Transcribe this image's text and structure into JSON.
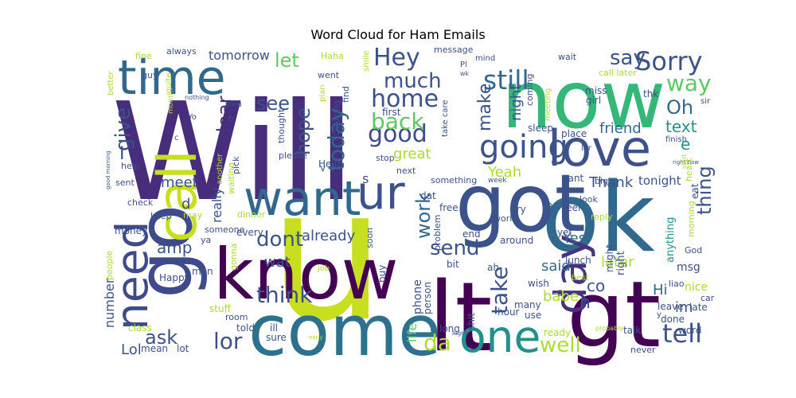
{
  "title": "Word Cloud for Ham Emails",
  "palette": {
    "dark_purple": "#440154",
    "indigo": "#472d7b",
    "blue": "#3b528b",
    "steel": "#2c728e",
    "teal": "#21918c",
    "green": "#28ae80",
    "light_green": "#5ec962",
    "lime": "#addc30",
    "yellow": "#fde725"
  },
  "words": [
    {
      "text": "Will",
      "color": "#472d7b"
    },
    {
      "text": "u",
      "color": "#c8df1f"
    },
    {
      "text": "now",
      "color": "#35b779"
    },
    {
      "text": "ok",
      "color": "#31688e"
    },
    {
      "text": "got",
      "color": "#3b528b"
    },
    {
      "text": "gt",
      "color": "#440154"
    },
    {
      "text": "lt",
      "color": "#440154"
    },
    {
      "text": "come",
      "color": "#2c728e"
    },
    {
      "text": "know",
      "color": "#440154"
    },
    {
      "text": "go",
      "color": "#3e4a89"
    },
    {
      "text": "love",
      "color": "#3b528b"
    },
    {
      "text": "time",
      "color": "#31688e"
    },
    {
      "text": "call",
      "color": "#c8df1f"
    },
    {
      "text": "want",
      "color": "#31688e"
    },
    {
      "text": "ur",
      "color": "#3b528b"
    },
    {
      "text": "one",
      "color": "#21918c"
    },
    {
      "text": "need",
      "color": "#3e4a89"
    },
    {
      "text": "day",
      "color": "#46327e"
    },
    {
      "text": "going",
      "color": "#3b528b"
    },
    {
      "text": "Sorry",
      "color": "#3b528b"
    },
    {
      "text": "still",
      "color": "#31688e"
    },
    {
      "text": "Hey",
      "color": "#3b528b"
    },
    {
      "text": "good",
      "color": "#3e4a89"
    },
    {
      "text": "home",
      "color": "#3b528b"
    },
    {
      "text": "much",
      "color": "#3b528b"
    },
    {
      "text": "back",
      "color": "#5ec962"
    },
    {
      "text": "today",
      "color": "#31688e"
    },
    {
      "text": "think",
      "color": "#3b528b"
    },
    {
      "text": "dont",
      "color": "#3b528b"
    },
    {
      "text": "tell",
      "color": "#3b528b"
    },
    {
      "text": "well",
      "color": "#addc30"
    },
    {
      "text": "da",
      "color": "#addc30"
    },
    {
      "text": "lor",
      "color": "#3b528b"
    },
    {
      "text": "ask",
      "color": "#3b528b"
    },
    {
      "text": "send",
      "color": "#3b528b"
    },
    {
      "text": "take",
      "color": "#3b528b"
    },
    {
      "text": "work",
      "color": "#31688e"
    },
    {
      "text": "way",
      "color": "#5ec962"
    },
    {
      "text": "say",
      "color": "#3b528b"
    },
    {
      "text": "see",
      "color": "#3b528b"
    },
    {
      "text": "let",
      "color": "#5ec962"
    },
    {
      "text": "give",
      "color": "#3b528b"
    },
    {
      "text": "dear",
      "color": "#46327e"
    },
    {
      "text": "hope",
      "color": "#3b528b"
    },
    {
      "text": "make",
      "color": "#3b528b"
    },
    {
      "text": "Oh",
      "color": "#31688e"
    },
    {
      "text": "text",
      "color": "#21918c"
    },
    {
      "text": "thing",
      "color": "#3b528b"
    },
    {
      "text": "friend",
      "color": "#31688e"
    },
    {
      "text": "night",
      "color": "#3b528b"
    },
    {
      "text": "great",
      "color": "#addc30"
    },
    {
      "text": "Yeah",
      "color": "#addc30"
    },
    {
      "text": "Thank",
      "color": "#3b528b"
    },
    {
      "text": "meet",
      "color": "#3b528b"
    },
    {
      "text": "really",
      "color": "#3b528b"
    },
    {
      "text": "wat",
      "color": "#3b528b"
    },
    {
      "text": "amp",
      "color": "#3b528b"
    },
    {
      "text": "already",
      "color": "#3b528b"
    },
    {
      "text": "said",
      "color": "#31688e"
    },
    {
      "text": "Yes",
      "color": "#31688e"
    },
    {
      "text": "later",
      "color": "#addc30"
    },
    {
      "text": "Hi",
      "color": "#31688e"
    },
    {
      "text": "n",
      "color": "#3b528b"
    },
    {
      "text": "co",
      "color": "#3b528b"
    },
    {
      "text": "babe",
      "color": "#addc30"
    },
    {
      "text": "im",
      "color": "#3b528b"
    },
    {
      "text": "Lol",
      "color": "#3b528b"
    },
    {
      "text": "life",
      "color": "#5ec962"
    },
    {
      "text": "number",
      "color": "#3b528b"
    },
    {
      "text": "tomorrow",
      "color": "#3b528b"
    },
    {
      "text": "tonight",
      "color": "#3b528b"
    },
    {
      "text": "e",
      "color": "#21918c"
    },
    {
      "text": "d",
      "color": "#3b528b"
    },
    {
      "text": "I",
      "color": "#3b528b"
    },
    {
      "text": "s",
      "color": "#3b528b"
    },
    {
      "text": "phone",
      "color": "#3b528b"
    },
    {
      "text": "msg",
      "color": "#3b528b"
    },
    {
      "text": "nice",
      "color": "#addc30"
    },
    {
      "text": "late",
      "color": "#3b528b"
    },
    {
      "text": "leave",
      "color": "#3b528b"
    },
    {
      "text": "done",
      "color": "#3b528b"
    },
    {
      "text": "talk",
      "color": "#3b528b"
    },
    {
      "text": "word",
      "color": "#3b528b"
    },
    {
      "text": "anything",
      "color": "#21918c"
    },
    {
      "text": "right",
      "color": "#3b528b"
    },
    {
      "text": "might",
      "color": "#3b528b"
    },
    {
      "text": "lunch",
      "color": "#3b528b"
    },
    {
      "text": "yet",
      "color": "#3b528b"
    },
    {
      "text": "around",
      "color": "#3b528b"
    },
    {
      "text": "end",
      "color": "#3b528b"
    },
    {
      "text": "wish",
      "color": "#3b528b"
    },
    {
      "text": "ah",
      "color": "#3b528b"
    },
    {
      "text": "bit",
      "color": "#3b528b"
    },
    {
      "text": "person",
      "color": "#3b528b"
    },
    {
      "text": "buy",
      "color": "#3b528b"
    },
    {
      "text": "hour",
      "color": "#3b528b"
    },
    {
      "text": "many",
      "color": "#3b528b"
    },
    {
      "text": "ready",
      "color": "#addc30"
    },
    {
      "text": "long",
      "color": "#3b528b"
    },
    {
      "text": "shit",
      "color": "#3b528b"
    },
    {
      "text": "use",
      "color": "#3b528b"
    },
    {
      "text": "sure",
      "color": "#3b528b"
    },
    {
      "text": "ill",
      "color": "#3b528b"
    },
    {
      "text": "told",
      "color": "#3b528b"
    },
    {
      "text": "room",
      "color": "#3b528b"
    },
    {
      "text": "stuff",
      "color": "#addc30"
    },
    {
      "text": "class",
      "color": "#addc30"
    },
    {
      "text": "mean",
      "color": "#3b528b"
    },
    {
      "text": "lot",
      "color": "#3b528b"
    },
    {
      "text": "Happy",
      "color": "#3b528b"
    },
    {
      "text": "man",
      "color": "#3b528b"
    },
    {
      "text": "people",
      "color": "#addc30"
    },
    {
      "text": "money",
      "color": "#3b528b"
    },
    {
      "text": "gonna",
      "color": "#addc30"
    },
    {
      "text": "someone",
      "color": "#3b528b"
    },
    {
      "text": "every",
      "color": "#3b528b"
    },
    {
      "text": "ya",
      "color": "#3b528b"
    },
    {
      "text": "keep",
      "color": "#3b528b"
    },
    {
      "text": "check",
      "color": "#3b528b"
    },
    {
      "text": "may",
      "color": "#addc30"
    },
    {
      "text": "sent",
      "color": "#3b528b"
    },
    {
      "text": "help",
      "color": "#3b528b"
    },
    {
      "text": "waiting",
      "color": "#addc30"
    },
    {
      "text": "dinner",
      "color": "#addc30"
    },
    {
      "text": "pick",
      "color": "#3b528b"
    },
    {
      "text": "another",
      "color": "#addc30"
    },
    {
      "text": "thought",
      "color": "#3b528b"
    },
    {
      "text": "please",
      "color": "#3b528b"
    },
    {
      "text": "Hello",
      "color": "#3b528b"
    },
    {
      "text": "getting",
      "color": "#3b528b"
    },
    {
      "text": "find",
      "color": "#3b528b"
    },
    {
      "text": "first",
      "color": "#3b528b"
    },
    {
      "text": "stop",
      "color": "#3b528b"
    },
    {
      "text": "next",
      "color": "#3b528b"
    },
    {
      "text": "something",
      "color": "#3b528b"
    },
    {
      "text": "dat",
      "color": "#3b528b"
    },
    {
      "text": "free",
      "color": "#3b528b"
    },
    {
      "text": "soon",
      "color": "#3b528b"
    },
    {
      "text": "problem",
      "color": "#3b528b"
    },
    {
      "text": "job",
      "color": "#addc30"
    },
    {
      "text": "v",
      "color": "#3b528b"
    },
    {
      "text": "cant",
      "color": "#3b528b"
    },
    {
      "text": "feel",
      "color": "#3b528b"
    },
    {
      "text": "try",
      "color": "#3b528b"
    },
    {
      "text": "Yup",
      "color": "#3b528b"
    },
    {
      "text": "world",
      "color": "#3b528b"
    },
    {
      "text": "look",
      "color": "#3b528b"
    },
    {
      "text": "reply",
      "color": "#addc30"
    },
    {
      "text": "big",
      "color": "#3b528b"
    },
    {
      "text": "place",
      "color": "#3b528b"
    },
    {
      "text": "girl",
      "color": "#3b528b"
    },
    {
      "text": "sleep",
      "color": "#3b528b"
    },
    {
      "text": "coming",
      "color": "#3b528b"
    },
    {
      "text": "miss",
      "color": "#3b528b"
    },
    {
      "text": "wait",
      "color": "#3b528b"
    },
    {
      "text": "call later",
      "color": "#addc30"
    },
    {
      "text": "thk",
      "color": "#3b528b"
    },
    {
      "text": "finish",
      "color": "#3b528b"
    },
    {
      "text": "eat",
      "color": "#3b528b"
    },
    {
      "text": "morning",
      "color": "#addc30"
    },
    {
      "text": "heart",
      "color": "#addc30"
    },
    {
      "text": "God",
      "color": "#3b528b"
    },
    {
      "text": "sir",
      "color": "#3b528b"
    },
    {
      "text": "car",
      "color": "#3b528b"
    },
    {
      "text": "liao",
      "color": "#3b528b"
    },
    {
      "text": "never",
      "color": "#3b528b"
    },
    {
      "text": "best",
      "color": "#addc30"
    },
    {
      "text": "probably",
      "color": "#addc30"
    },
    {
      "text": "message",
      "color": "#3b528b"
    },
    {
      "text": "mind",
      "color": "#3b528b"
    },
    {
      "text": "Haha",
      "color": "#addc30"
    },
    {
      "text": "went",
      "color": "#3b528b"
    },
    {
      "text": "plan",
      "color": "#addc30"
    },
    {
      "text": "smile",
      "color": "#addc30"
    },
    {
      "text": "meeting",
      "color": "#addc30"
    },
    {
      "text": "take care",
      "color": "#3b528b"
    },
    {
      "text": "always",
      "color": "#3b528b"
    },
    {
      "text": "fine",
      "color": "#addc30"
    },
    {
      "text": "guy",
      "color": "#3b528b"
    },
    {
      "text": "better",
      "color": "#addc30"
    },
    {
      "text": "quite",
      "color": "#addc30"
    },
    {
      "text": "month",
      "color": "#addc30"
    },
    {
      "text": "nothing",
      "color": "#3b528b"
    },
    {
      "text": "bring",
      "color": "#3b528b"
    },
    {
      "text": "Yo",
      "color": "#3b528b"
    },
    {
      "text": "b",
      "color": "#3b528b"
    },
    {
      "text": "c",
      "color": "#3b528b"
    },
    {
      "text": "good morning",
      "color": "#3b528b"
    },
    {
      "text": "week",
      "color": "#3b528b"
    },
    {
      "text": "right now",
      "color": "#3b528b"
    },
    {
      "text": "start",
      "color": "#addc30"
    },
    {
      "text": "Aight",
      "color": "#3b528b"
    },
    {
      "text": "early",
      "color": "#addc30"
    },
    {
      "text": "Pl",
      "color": "#3b528b"
    },
    {
      "text": "lar",
      "color": "#3b528b"
    },
    {
      "text": "ü",
      "color": "#3b528b"
    },
    {
      "text": "y",
      "color": "#3b528b"
    },
    {
      "text": "wk",
      "color": "#3b528b"
    }
  ]
}
